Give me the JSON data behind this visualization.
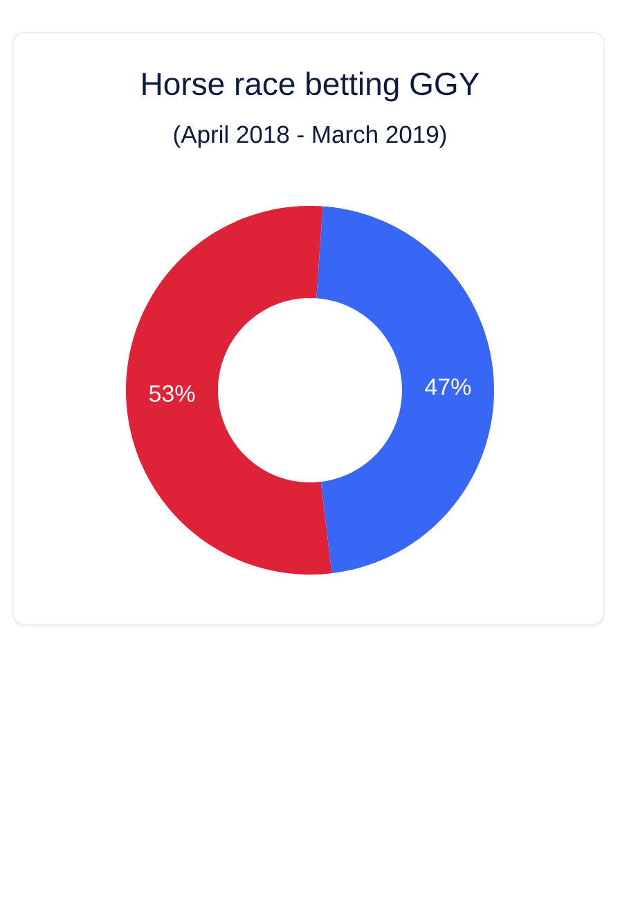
{
  "chart_data": {
    "type": "donut",
    "title": "Horse race betting GGY",
    "subtitle": "(April 2018 - March 2019)",
    "categories": [
      null,
      null
    ],
    "values": [
      47,
      53
    ],
    "colors": [
      "#3866f5",
      "#de2238"
    ],
    "value_labels": [
      "47%",
      "53%"
    ]
  }
}
